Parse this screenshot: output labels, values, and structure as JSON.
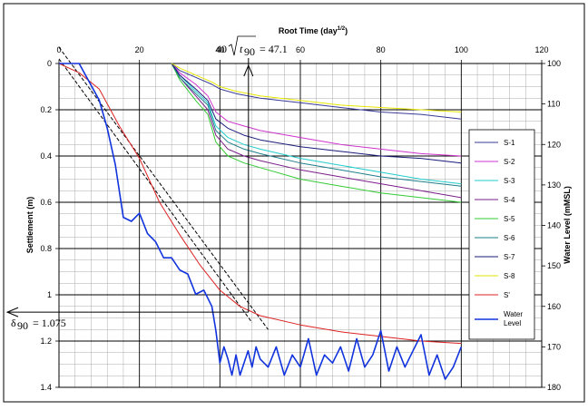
{
  "chart_data": {
    "type": "line",
    "title": "",
    "x_top": {
      "label": "Root Time (day",
      "label_sup": "1/2",
      "label_close": ")",
      "range": [
        0,
        120
      ],
      "ticks": [
        "0",
        "20",
        "40",
        "60",
        "80",
        "100",
        "120"
      ],
      "grid_minor_step": 4
    },
    "y_left": {
      "label": "Settlement (m)",
      "range": [
        0,
        1.4
      ],
      "ticks": [
        "0",
        "0.2",
        "0.4",
        "0.6",
        "0.8",
        "1",
        "1.2",
        "1.4"
      ],
      "grid_minor_step": 0.05
    },
    "y_right": {
      "label": "Water Level (mMSL)",
      "range": [
        100,
        180
      ],
      "ticks": [
        "100",
        "110",
        "120",
        "130",
        "140",
        "150",
        "160",
        "170",
        "180"
      ]
    },
    "grid": true,
    "legend_position": "right",
    "series": [
      {
        "name": "S-1",
        "color": "#3a3a9a",
        "axis": "left",
        "x": [
          28,
          30,
          34,
          38,
          40,
          44,
          50,
          60,
          70,
          80,
          90,
          100
        ],
        "y": [
          0.0,
          0.03,
          0.06,
          0.09,
          0.11,
          0.13,
          0.15,
          0.17,
          0.19,
          0.21,
          0.22,
          0.24
        ]
      },
      {
        "name": "S-2",
        "color": "#cc33cc",
        "axis": "left",
        "x": [
          28,
          30,
          34,
          37,
          39,
          42,
          46,
          50,
          60,
          70,
          80,
          90,
          100
        ],
        "y": [
          0.0,
          0.04,
          0.09,
          0.14,
          0.21,
          0.25,
          0.27,
          0.29,
          0.32,
          0.35,
          0.37,
          0.39,
          0.4
        ]
      },
      {
        "name": "S-3",
        "color": "#22cccc",
        "axis": "left",
        "x": [
          28,
          30,
          34,
          37,
          39,
          42,
          46,
          50,
          60,
          70,
          80,
          90,
          100
        ],
        "y": [
          0.0,
          0.05,
          0.12,
          0.17,
          0.27,
          0.32,
          0.35,
          0.37,
          0.41,
          0.44,
          0.47,
          0.5,
          0.52
        ]
      },
      {
        "name": "S-4",
        "color": "#7a1f8a",
        "axis": "left",
        "x": [
          28,
          30,
          34,
          37,
          39,
          42,
          46,
          50,
          60,
          70,
          80,
          90,
          100
        ],
        "y": [
          0.0,
          0.06,
          0.14,
          0.2,
          0.31,
          0.37,
          0.4,
          0.42,
          0.46,
          0.49,
          0.52,
          0.55,
          0.58
        ]
      },
      {
        "name": "S-5",
        "color": "#33cc33",
        "axis": "left",
        "x": [
          28,
          30,
          34,
          37,
          39,
          42,
          46,
          50,
          60,
          70,
          80,
          90,
          100
        ],
        "y": [
          0.0,
          0.07,
          0.16,
          0.22,
          0.34,
          0.4,
          0.43,
          0.45,
          0.5,
          0.53,
          0.56,
          0.58,
          0.6
        ]
      },
      {
        "name": "S-6",
        "color": "#1e7e8a",
        "axis": "left",
        "x": [
          28,
          30,
          34,
          37,
          39,
          42,
          46,
          50,
          60,
          70,
          80,
          90,
          100
        ],
        "y": [
          0.0,
          0.06,
          0.13,
          0.18,
          0.29,
          0.34,
          0.37,
          0.39,
          0.43,
          0.46,
          0.49,
          0.51,
          0.53
        ]
      },
      {
        "name": "S-7",
        "color": "#1a1a7a",
        "axis": "left",
        "x": [
          28,
          30,
          34,
          37,
          39,
          42,
          46,
          50,
          60,
          70,
          80,
          90,
          100
        ],
        "y": [
          0.0,
          0.05,
          0.11,
          0.16,
          0.24,
          0.28,
          0.31,
          0.33,
          0.36,
          0.38,
          0.4,
          0.41,
          0.43
        ]
      },
      {
        "name": "S-8",
        "color": "#e6e600",
        "axis": "left",
        "x": [
          28,
          30,
          34,
          38,
          40,
          44,
          50,
          60,
          70,
          80,
          90,
          100
        ],
        "y": [
          0.0,
          0.02,
          0.05,
          0.08,
          0.1,
          0.12,
          0.14,
          0.16,
          0.18,
          0.19,
          0.2,
          0.21
        ]
      },
      {
        "name": "S'",
        "color": "#dd2222",
        "axis": "left",
        "x": [
          0,
          5,
          10,
          15,
          20,
          25,
          30,
          35,
          40,
          45,
          50,
          60,
          70,
          80,
          90,
          100
        ],
        "y": [
          0.0,
          0.04,
          0.11,
          0.27,
          0.41,
          0.6,
          0.74,
          0.87,
          0.98,
          1.05,
          1.09,
          1.13,
          1.16,
          1.18,
          1.2,
          1.21
        ]
      },
      {
        "name": "Water",
        "name2": "Level",
        "color": "#1133dd",
        "axis": "right",
        "x": [
          0,
          5,
          10,
          12,
          14,
          16,
          18,
          20,
          22,
          24,
          26,
          28,
          30,
          32,
          34,
          36,
          38,
          39,
          40,
          41,
          42,
          43,
          44,
          45,
          46,
          47,
          48,
          49,
          50,
          52,
          54,
          56,
          58,
          60,
          62,
          64,
          66,
          68,
          70,
          72,
          74,
          76,
          78,
          80,
          82,
          84,
          86,
          88,
          90,
          92,
          94,
          96,
          98,
          100
        ],
        "y": [
          100,
          100,
          109,
          116,
          125,
          138,
          139,
          137,
          142,
          144,
          148,
          148,
          151,
          152,
          157,
          156,
          160,
          166,
          174,
          170,
          173,
          177,
          172,
          177,
          174,
          171,
          175,
          170,
          173,
          175,
          170,
          177,
          172,
          175,
          168,
          177,
          172,
          174,
          170,
          176,
          168,
          175,
          172,
          166,
          176,
          170,
          175,
          171,
          167,
          177,
          172,
          178,
          175,
          170
        ]
      }
    ],
    "annotations": {
      "tangent_lines": [
        {
          "x": [
            0,
            48
          ],
          "y": [
            -0.02,
            1.12
          ]
        },
        {
          "x": [
            0,
            52
          ],
          "y": [
            -0.07,
            1.15
          ]
        }
      ],
      "t90_label": "40",
      "t90_value": "= 47.1",
      "t90_root": "t",
      "t90_sub": "90",
      "t90_x": 47.1,
      "delta_symbol": "δ",
      "delta_sub": "90",
      "delta_value": "= 1.075",
      "delta_y": 1.075
    }
  }
}
